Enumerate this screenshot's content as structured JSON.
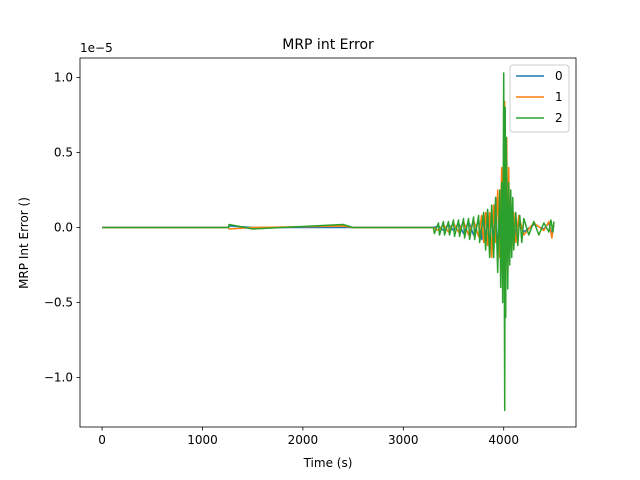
{
  "chart_data": {
    "type": "line",
    "title": "MRP int Error",
    "xlabel": "Time (s)",
    "ylabel": "MRP Int Error ()",
    "offset_text": "1e−5",
    "xlim": [
      -220,
      4720
    ],
    "ylim": [
      -1.33,
      1.13
    ],
    "xticks": [
      0,
      1000,
      2000,
      3000,
      4000
    ],
    "xtick_labels": [
      "0",
      "1000",
      "2000",
      "3000",
      "4000"
    ],
    "yticks": [
      -1.0,
      -0.5,
      0.0,
      0.5,
      1.0
    ],
    "ytick_labels": [
      "−1.0",
      "−0.5",
      "0.0",
      "0.5",
      "1.0"
    ],
    "grid": false,
    "legend_position": "top-right",
    "series": [
      {
        "name": "0",
        "color": "#1f77b4",
        "x": [
          0,
          1260,
          1265,
          1500,
          2400,
          2500,
          3300,
          3350,
          3400,
          3450,
          3500,
          3550,
          3600,
          3650,
          3700,
          3750,
          3780,
          3800,
          3820,
          3840,
          3860,
          3880,
          3900,
          3920,
          3940,
          3960,
          3980,
          3990,
          4000,
          4010,
          4020,
          4030,
          4040,
          4050,
          4060,
          4070,
          4080,
          4100,
          4120,
          4150,
          4200,
          4300,
          4400,
          4450,
          4480,
          4500
        ],
        "y": [
          0,
          0,
          0.01,
          0,
          0,
          0,
          0,
          0.01,
          -0.02,
          0.02,
          -0.02,
          0.03,
          -0.04,
          0.04,
          -0.05,
          0.05,
          -0.08,
          0.08,
          -0.1,
          0.12,
          -0.15,
          0.1,
          -0.1,
          0.2,
          -0.2,
          0.15,
          -0.1,
          0.18,
          -0.15,
          0.2,
          -0.25,
          0.35,
          -0.3,
          0.2,
          -0.2,
          0.15,
          -0.1,
          0.08,
          -0.06,
          0.05,
          -0.03,
          0.02,
          -0.01,
          0.03,
          -0.04,
          0.02
        ]
      },
      {
        "name": "1",
        "color": "#ff7f0e",
        "x": [
          0,
          1260,
          1265,
          1500,
          2400,
          2500,
          3300,
          3350,
          3400,
          3450,
          3500,
          3550,
          3600,
          3650,
          3700,
          3750,
          3780,
          3800,
          3820,
          3840,
          3860,
          3880,
          3900,
          3920,
          3940,
          3960,
          3980,
          3990,
          4000,
          4010,
          4020,
          4030,
          4040,
          4050,
          4060,
          4070,
          4080,
          4100,
          4120,
          4150,
          4200,
          4300,
          4400,
          4450,
          4480,
          4500
        ],
        "y": [
          0,
          0,
          -0.01,
          0,
          0.01,
          0,
          0,
          -0.02,
          0.02,
          -0.03,
          0.03,
          -0.03,
          0.04,
          -0.05,
          0.05,
          -0.06,
          0.08,
          -0.1,
          0.1,
          -0.12,
          0.1,
          -0.2,
          0.15,
          -0.1,
          0.25,
          -0.2,
          0.4,
          -0.2,
          0.3,
          0.84,
          -0.3,
          0.6,
          -0.35,
          0.4,
          -0.2,
          0.2,
          -0.15,
          0.1,
          -0.1,
          0.08,
          -0.05,
          0.03,
          -0.02,
          0.04,
          -0.07,
          0.03
        ]
      },
      {
        "name": "2",
        "color": "#2ca02c",
        "x": [
          0,
          1260,
          1265,
          1500,
          2400,
          2500,
          3300,
          3310,
          3350,
          3360,
          3400,
          3410,
          3450,
          3460,
          3500,
          3510,
          3550,
          3560,
          3600,
          3610,
          3650,
          3660,
          3700,
          3710,
          3750,
          3760,
          3800,
          3820,
          3840,
          3860,
          3880,
          3900,
          3920,
          3940,
          3960,
          3970,
          3980,
          3990,
          4000,
          4010,
          4015,
          4020,
          4025,
          4030,
          4040,
          4050,
          4060,
          4070,
          4080,
          4090,
          4100,
          4120,
          4140,
          4160,
          4180,
          4200,
          4250,
          4300,
          4350,
          4400,
          4450,
          4470,
          4490,
          4500
        ],
        "y": [
          0,
          0,
          0.02,
          -0.01,
          0.02,
          0,
          0,
          -0.04,
          0.03,
          -0.05,
          0.04,
          -0.05,
          0.04,
          -0.05,
          0.05,
          -0.06,
          0.05,
          -0.06,
          0.06,
          -0.07,
          0.06,
          -0.08,
          0.07,
          -0.08,
          0.08,
          -0.1,
          0.1,
          -0.15,
          0.12,
          -0.2,
          0.15,
          -0.2,
          0.2,
          -0.3,
          0.25,
          -0.4,
          0.3,
          -0.5,
          1.03,
          -1.22,
          0.8,
          -0.6,
          0.6,
          0.36,
          -0.41,
          0.3,
          -0.25,
          0.25,
          -0.2,
          0.2,
          -0.15,
          0.1,
          -0.12,
          0.08,
          -0.1,
          0.06,
          -0.05,
          0.04,
          -0.05,
          0.03,
          -0.03,
          0.05,
          -0.03,
          0.04
        ]
      }
    ]
  }
}
